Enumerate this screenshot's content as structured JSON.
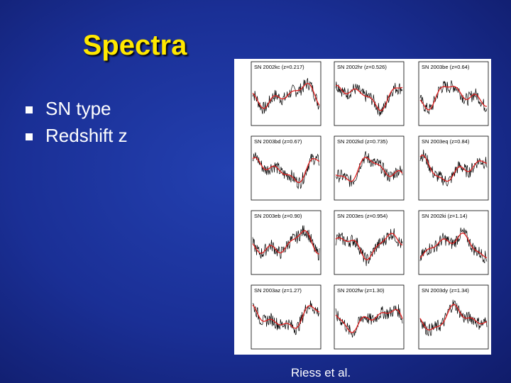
{
  "title": "Spectra",
  "bullets": [
    "SN type",
    "Redshift z"
  ],
  "figure": {
    "panels": [
      "SN 2002kc (z=0.217)",
      "SN 2002hr (z=0.526)",
      "SN 2003be (z=0.64)",
      "SN 2003bd (z=0.67)",
      "SN 2002kd (z=0.735)",
      "SN 2003eq (z=0.84)",
      "SN 2003eb (z=0.90)",
      "SN 2003es (z=0.954)",
      "SN 2002ki (z=1.14)",
      "SN 2003az (z=1.27)",
      "SN 2002fw (z=1.30)",
      "SN 2003dy (z=1.34)"
    ]
  },
  "caption": "Riess et al."
}
